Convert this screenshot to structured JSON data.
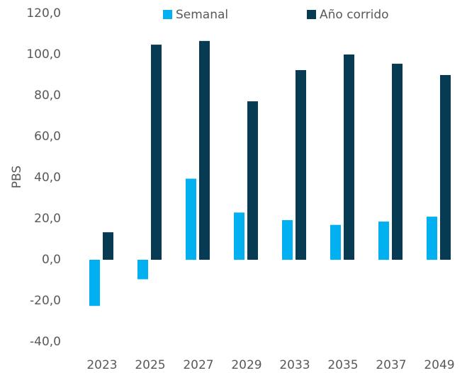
{
  "chart_data": {
    "type": "bar",
    "categories": [
      "2023",
      "2025",
      "2027",
      "2029",
      "2033",
      "2035",
      "2037",
      "2049"
    ],
    "series": [
      {
        "name": "Semanal",
        "color": "#00b0f0",
        "values": [
          -22.5,
          -9.5,
          39.5,
          23,
          19.3,
          17,
          18.6,
          21
        ]
      },
      {
        "name": "Año corrido",
        "color": "#073b53",
        "values": [
          13.4,
          104.8,
          106.6,
          77.2,
          92.4,
          100,
          95.5,
          90
        ]
      }
    ],
    "y_label": "PBS",
    "ylim": [
      -40,
      120
    ],
    "yticks": [
      {
        "value": -40,
        "label": "-40,0"
      },
      {
        "value": -20,
        "label": "-20,0"
      },
      {
        "value": 0,
        "label": "0,0"
      },
      {
        "value": 20,
        "label": "20,0"
      },
      {
        "value": 40,
        "label": "40,0"
      },
      {
        "value": 60,
        "label": "60,0"
      },
      {
        "value": 80,
        "label": "80,0"
      },
      {
        "value": 100,
        "label": "100,0"
      },
      {
        "value": 120,
        "label": "120,0"
      }
    ],
    "grid": false,
    "legend": "top"
  }
}
